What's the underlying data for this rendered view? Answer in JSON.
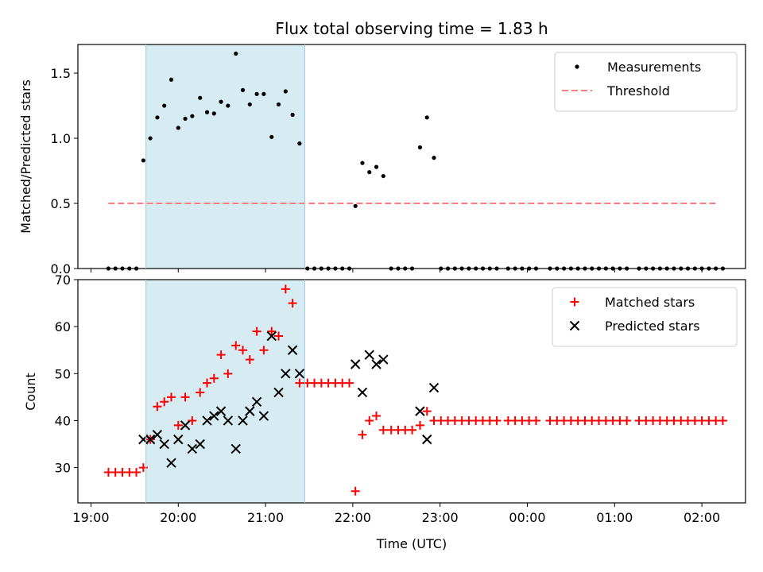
{
  "chart_data": {
    "type": "scatter",
    "title": "Flux total observing time = 1.83 h",
    "xlabel": "Time (UTC)",
    "x_unit": "hours (UTC), ticks labeled HH:MM",
    "xlim": [
      18.85,
      26.5
    ],
    "xticks": [
      {
        "value": 19,
        "label": "19:00"
      },
      {
        "value": 20,
        "label": "20:00"
      },
      {
        "value": 21,
        "label": "21:00"
      },
      {
        "value": 22,
        "label": "22:00"
      },
      {
        "value": 23,
        "label": "23:00"
      },
      {
        "value": 24,
        "label": "00:00"
      },
      {
        "value": 25,
        "label": "01:00"
      },
      {
        "value": 26,
        "label": "02:00"
      }
    ],
    "shaded_interval": {
      "start": 19.63,
      "end": 21.45,
      "color": "#add8e6"
    },
    "panels": [
      {
        "ylabel": "Matched/Predicted stars",
        "ylim": [
          0,
          1.72
        ],
        "yticks": [
          0.0,
          0.5,
          1.0,
          1.5
        ],
        "ytick_labels": [
          "0.0",
          "0.5",
          "1.0",
          "1.5"
        ],
        "legend_position": "upper right",
        "threshold": {
          "name": "Threshold",
          "value": 0.5,
          "x_start": 19.2,
          "x_end": 26.17,
          "color": "#ff7f7f",
          "style": "dashed"
        },
        "series": [
          {
            "name": "Measurements",
            "marker": "dot",
            "color": "#000000",
            "points": [
              [
                19.2,
                0
              ],
              [
                19.28,
                0
              ],
              [
                19.36,
                0
              ],
              [
                19.44,
                0
              ],
              [
                19.52,
                0
              ],
              [
                19.6,
                0.83
              ],
              [
                19.68,
                1.0
              ],
              [
                19.76,
                1.16
              ],
              [
                19.84,
                1.25
              ],
              [
                19.92,
                1.45
              ],
              [
                20.0,
                1.08
              ],
              [
                20.08,
                1.15
              ],
              [
                20.16,
                1.17
              ],
              [
                20.25,
                1.31
              ],
              [
                20.33,
                1.2
              ],
              [
                20.41,
                1.19
              ],
              [
                20.49,
                1.28
              ],
              [
                20.57,
                1.25
              ],
              [
                20.66,
                1.65
              ],
              [
                20.74,
                1.37
              ],
              [
                20.82,
                1.26
              ],
              [
                20.9,
                1.34
              ],
              [
                20.98,
                1.34
              ],
              [
                21.07,
                1.01
              ],
              [
                21.15,
                1.26
              ],
              [
                21.23,
                1.36
              ],
              [
                21.31,
                1.18
              ],
              [
                21.39,
                0.96
              ],
              [
                21.48,
                0
              ],
              [
                21.56,
                0
              ],
              [
                21.64,
                0
              ],
              [
                21.72,
                0
              ],
              [
                21.8,
                0
              ],
              [
                21.88,
                0
              ],
              [
                21.96,
                0
              ],
              [
                22.03,
                0.48
              ],
              [
                22.11,
                0.81
              ],
              [
                22.19,
                0.74
              ],
              [
                22.27,
                0.78
              ],
              [
                22.35,
                0.71
              ],
              [
                22.44,
                0
              ],
              [
                22.52,
                0
              ],
              [
                22.6,
                0
              ],
              [
                22.68,
                0
              ],
              [
                22.77,
                0.93
              ],
              [
                22.85,
                1.16
              ],
              [
                22.93,
                0.85
              ],
              [
                23.01,
                0
              ],
              [
                23.09,
                0
              ],
              [
                23.17,
                0
              ],
              [
                23.25,
                0
              ],
              [
                23.33,
                0
              ],
              [
                23.41,
                0
              ],
              [
                23.49,
                0
              ],
              [
                23.57,
                0
              ],
              [
                23.65,
                0
              ],
              [
                23.78,
                0
              ],
              [
                23.86,
                0
              ],
              [
                23.94,
                0
              ],
              [
                24.02,
                0
              ],
              [
                24.1,
                0
              ],
              [
                24.26,
                0
              ],
              [
                24.34,
                0
              ],
              [
                24.42,
                0
              ],
              [
                24.5,
                0
              ],
              [
                24.58,
                0
              ],
              [
                24.66,
                0
              ],
              [
                24.74,
                0
              ],
              [
                24.82,
                0
              ],
              [
                24.9,
                0
              ],
              [
                24.98,
                0
              ],
              [
                25.06,
                0
              ],
              [
                25.14,
                0
              ],
              [
                25.28,
                0
              ],
              [
                25.36,
                0
              ],
              [
                25.44,
                0
              ],
              [
                25.52,
                0
              ],
              [
                25.6,
                0
              ],
              [
                25.68,
                0
              ],
              [
                25.76,
                0
              ],
              [
                25.84,
                0
              ],
              [
                25.92,
                0
              ],
              [
                26.0,
                0
              ],
              [
                26.08,
                0
              ],
              [
                26.16,
                0
              ],
              [
                26.24,
                0
              ]
            ]
          }
        ]
      },
      {
        "ylabel": "Count",
        "ylim": [
          22.5,
          70
        ],
        "yticks": [
          30,
          40,
          50,
          60,
          70
        ],
        "ytick_labels": [
          "30",
          "40",
          "50",
          "60",
          "70"
        ],
        "legend_position": "upper right",
        "series": [
          {
            "name": "Matched stars",
            "marker": "plus",
            "color": "#ff0000",
            "points": [
              [
                19.2,
                29
              ],
              [
                19.28,
                29
              ],
              [
                19.36,
                29
              ],
              [
                19.44,
                29
              ],
              [
                19.52,
                29
              ],
              [
                19.6,
                30
              ],
              [
                19.68,
                36
              ],
              [
                19.76,
                43
              ],
              [
                19.84,
                44
              ],
              [
                19.92,
                45
              ],
              [
                20.0,
                39
              ],
              [
                20.08,
                45
              ],
              [
                20.16,
                40
              ],
              [
                20.25,
                46
              ],
              [
                20.33,
                48
              ],
              [
                20.41,
                49
              ],
              [
                20.49,
                54
              ],
              [
                20.57,
                50
              ],
              [
                20.66,
                56
              ],
              [
                20.74,
                55
              ],
              [
                20.82,
                53
              ],
              [
                20.9,
                59
              ],
              [
                20.98,
                55
              ],
              [
                21.07,
                59
              ],
              [
                21.15,
                58
              ],
              [
                21.23,
                68
              ],
              [
                21.31,
                65
              ],
              [
                21.39,
                48
              ],
              [
                21.48,
                48
              ],
              [
                21.56,
                48
              ],
              [
                21.64,
                48
              ],
              [
                21.72,
                48
              ],
              [
                21.8,
                48
              ],
              [
                21.88,
                48
              ],
              [
                21.96,
                48
              ],
              [
                22.03,
                25
              ],
              [
                22.11,
                37
              ],
              [
                22.19,
                40
              ],
              [
                22.27,
                41
              ],
              [
                22.35,
                38
              ],
              [
                22.44,
                38
              ],
              [
                22.52,
                38
              ],
              [
                22.6,
                38
              ],
              [
                22.68,
                38
              ],
              [
                22.77,
                39
              ],
              [
                22.85,
                42
              ],
              [
                22.93,
                40
              ],
              [
                23.01,
                40
              ],
              [
                23.09,
                40
              ],
              [
                23.17,
                40
              ],
              [
                23.25,
                40
              ],
              [
                23.33,
                40
              ],
              [
                23.41,
                40
              ],
              [
                23.49,
                40
              ],
              [
                23.57,
                40
              ],
              [
                23.65,
                40
              ],
              [
                23.78,
                40
              ],
              [
                23.86,
                40
              ],
              [
                23.94,
                40
              ],
              [
                24.02,
                40
              ],
              [
                24.1,
                40
              ],
              [
                24.26,
                40
              ],
              [
                24.34,
                40
              ],
              [
                24.42,
                40
              ],
              [
                24.5,
                40
              ],
              [
                24.58,
                40
              ],
              [
                24.66,
                40
              ],
              [
                24.74,
                40
              ],
              [
                24.82,
                40
              ],
              [
                24.9,
                40
              ],
              [
                24.98,
                40
              ],
              [
                25.06,
                40
              ],
              [
                25.14,
                40
              ],
              [
                25.28,
                40
              ],
              [
                25.36,
                40
              ],
              [
                25.44,
                40
              ],
              [
                25.52,
                40
              ],
              [
                25.6,
                40
              ],
              [
                25.68,
                40
              ],
              [
                25.76,
                40
              ],
              [
                25.84,
                40
              ],
              [
                25.92,
                40
              ],
              [
                26.0,
                40
              ],
              [
                26.08,
                40
              ],
              [
                26.16,
                40
              ],
              [
                26.24,
                40
              ]
            ]
          },
          {
            "name": "Predicted stars",
            "marker": "x",
            "color": "#000000",
            "points": [
              [
                19.6,
                36
              ],
              [
                19.68,
                36
              ],
              [
                19.76,
                37
              ],
              [
                19.84,
                35
              ],
              [
                19.92,
                31
              ],
              [
                20.0,
                36
              ],
              [
                20.08,
                39
              ],
              [
                20.16,
                34
              ],
              [
                20.25,
                35
              ],
              [
                20.33,
                40
              ],
              [
                20.41,
                41
              ],
              [
                20.49,
                42
              ],
              [
                20.57,
                40
              ],
              [
                20.66,
                34
              ],
              [
                20.74,
                40
              ],
              [
                20.82,
                42
              ],
              [
                20.9,
                44
              ],
              [
                20.98,
                41
              ],
              [
                21.07,
                58
              ],
              [
                21.15,
                46
              ],
              [
                21.23,
                50
              ],
              [
                21.31,
                55
              ],
              [
                21.39,
                50
              ],
              [
                22.03,
                52
              ],
              [
                22.11,
                46
              ],
              [
                22.19,
                54
              ],
              [
                22.27,
                52
              ],
              [
                22.35,
                53
              ],
              [
                22.77,
                42
              ],
              [
                22.85,
                36
              ],
              [
                22.93,
                47
              ]
            ]
          }
        ]
      }
    ]
  }
}
